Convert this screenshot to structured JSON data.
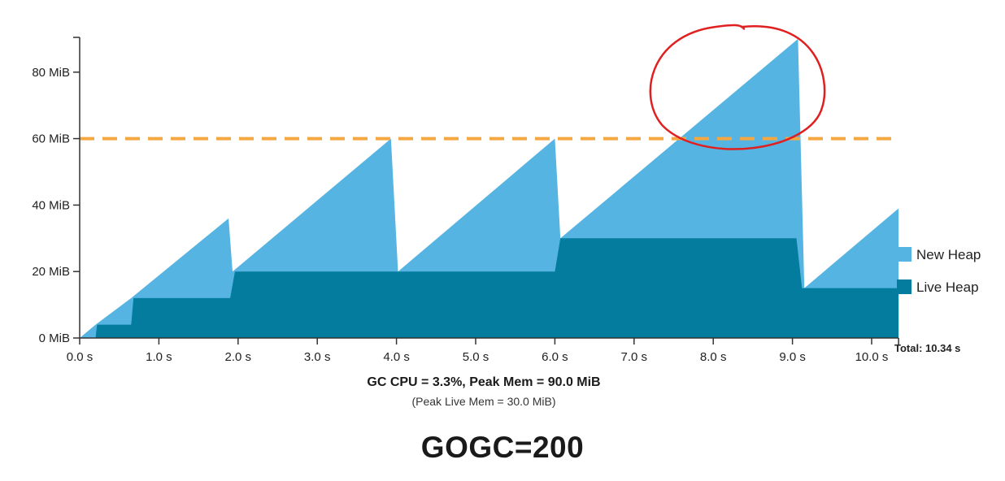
{
  "chart_data": {
    "type": "area",
    "x_unit": "s",
    "y_unit": "MiB",
    "xlim": [
      0,
      10.34
    ],
    "ylim": [
      0,
      90
    ],
    "x_ticks": [
      "0.0 s",
      "1.0 s",
      "2.0 s",
      "3.0 s",
      "4.0 s",
      "5.0 s",
      "6.0 s",
      "7.0 s",
      "8.0 s",
      "9.0 s",
      "10.0 s"
    ],
    "y_ticks": [
      "0 MiB",
      "20 MiB",
      "40 MiB",
      "60 MiB",
      "80 MiB"
    ],
    "series": [
      {
        "name": "New Heap",
        "color": "#56b4e2",
        "points": [
          [
            0,
            0
          ],
          [
            0.2,
            4
          ],
          [
            0.65,
            12
          ],
          [
            1.88,
            36
          ],
          [
            1.93,
            20
          ],
          [
            3.93,
            60
          ],
          [
            4.02,
            20
          ],
          [
            6.0,
            60
          ],
          [
            6.07,
            30
          ],
          [
            9.07,
            90
          ],
          [
            9.15,
            15
          ],
          [
            10.34,
            39
          ],
          [
            10.34,
            0
          ]
        ]
      },
      {
        "name": "Live Heap",
        "color": "#037c9d",
        "points": [
          [
            0,
            0
          ],
          [
            0.2,
            0
          ],
          [
            0.22,
            4
          ],
          [
            0.65,
            4
          ],
          [
            0.68,
            12
          ],
          [
            1.9,
            12
          ],
          [
            1.96,
            20
          ],
          [
            4.0,
            20
          ],
          [
            6.0,
            20
          ],
          [
            6.07,
            30
          ],
          [
            9.05,
            30
          ],
          [
            9.12,
            15
          ],
          [
            10.34,
            15
          ],
          [
            10.34,
            0
          ]
        ]
      }
    ],
    "reference_line": {
      "y": 60,
      "color": "#f5a742",
      "style": "dashed"
    },
    "legend": {
      "placement": "right",
      "entries": [
        "New Heap",
        "Live Heap"
      ]
    },
    "total_label": "Total: 10.34 s",
    "annotation": {
      "type": "hand-drawn circle",
      "color": "#e02020",
      "around_x": [
        7.2,
        9.4
      ],
      "around_y": [
        55,
        94
      ]
    },
    "grid": false
  },
  "caption": {
    "main": "GC CPU = 3.3%, Peak Mem = 90.0 MiB",
    "sub": "(Peak Live Mem = 30.0 MiB)"
  },
  "title": "GOGC=200"
}
